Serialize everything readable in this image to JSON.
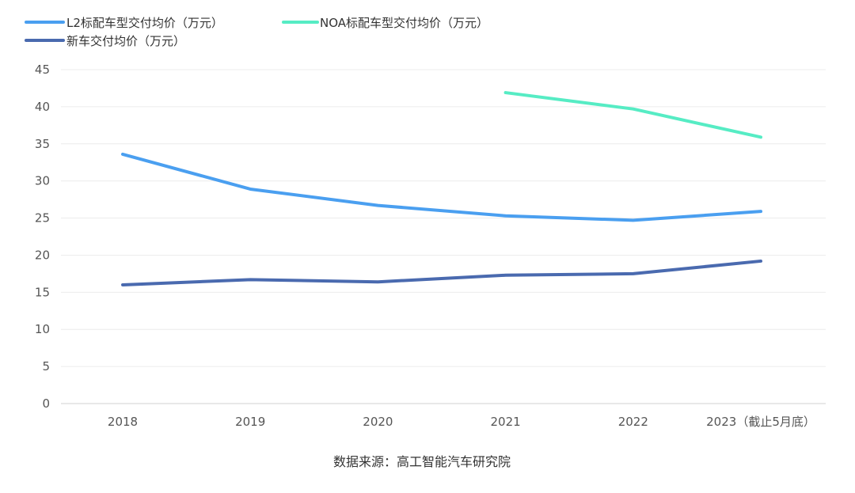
{
  "chart_data": {
    "type": "line",
    "title": "",
    "xlabel": "",
    "ylabel": "",
    "categories": [
      "2018",
      "2019",
      "2020",
      "2021",
      "2022",
      "2023（截止5月底）"
    ],
    "ylim": [
      0,
      45
    ],
    "yticks": [
      0,
      5,
      10,
      15,
      20,
      25,
      30,
      35,
      40,
      45
    ],
    "grid": true,
    "legend_position": "top-left",
    "series": [
      {
        "name": "L2标配车型交付均价（万元）",
        "color": "#4a9ff0",
        "values": [
          33.6,
          28.9,
          26.7,
          25.3,
          24.7,
          25.9
        ]
      },
      {
        "name": "NOA标配车型交付均价（万元）",
        "color": "#56ecc4",
        "values": [
          null,
          null,
          null,
          41.9,
          39.7,
          35.9
        ]
      },
      {
        "name": "新车交付均价（万元）",
        "color": "#4a6aaf",
        "values": [
          16.0,
          16.7,
          16.4,
          17.3,
          17.5,
          19.2
        ]
      }
    ],
    "source": "数据来源：高工智能汽车研究院"
  }
}
